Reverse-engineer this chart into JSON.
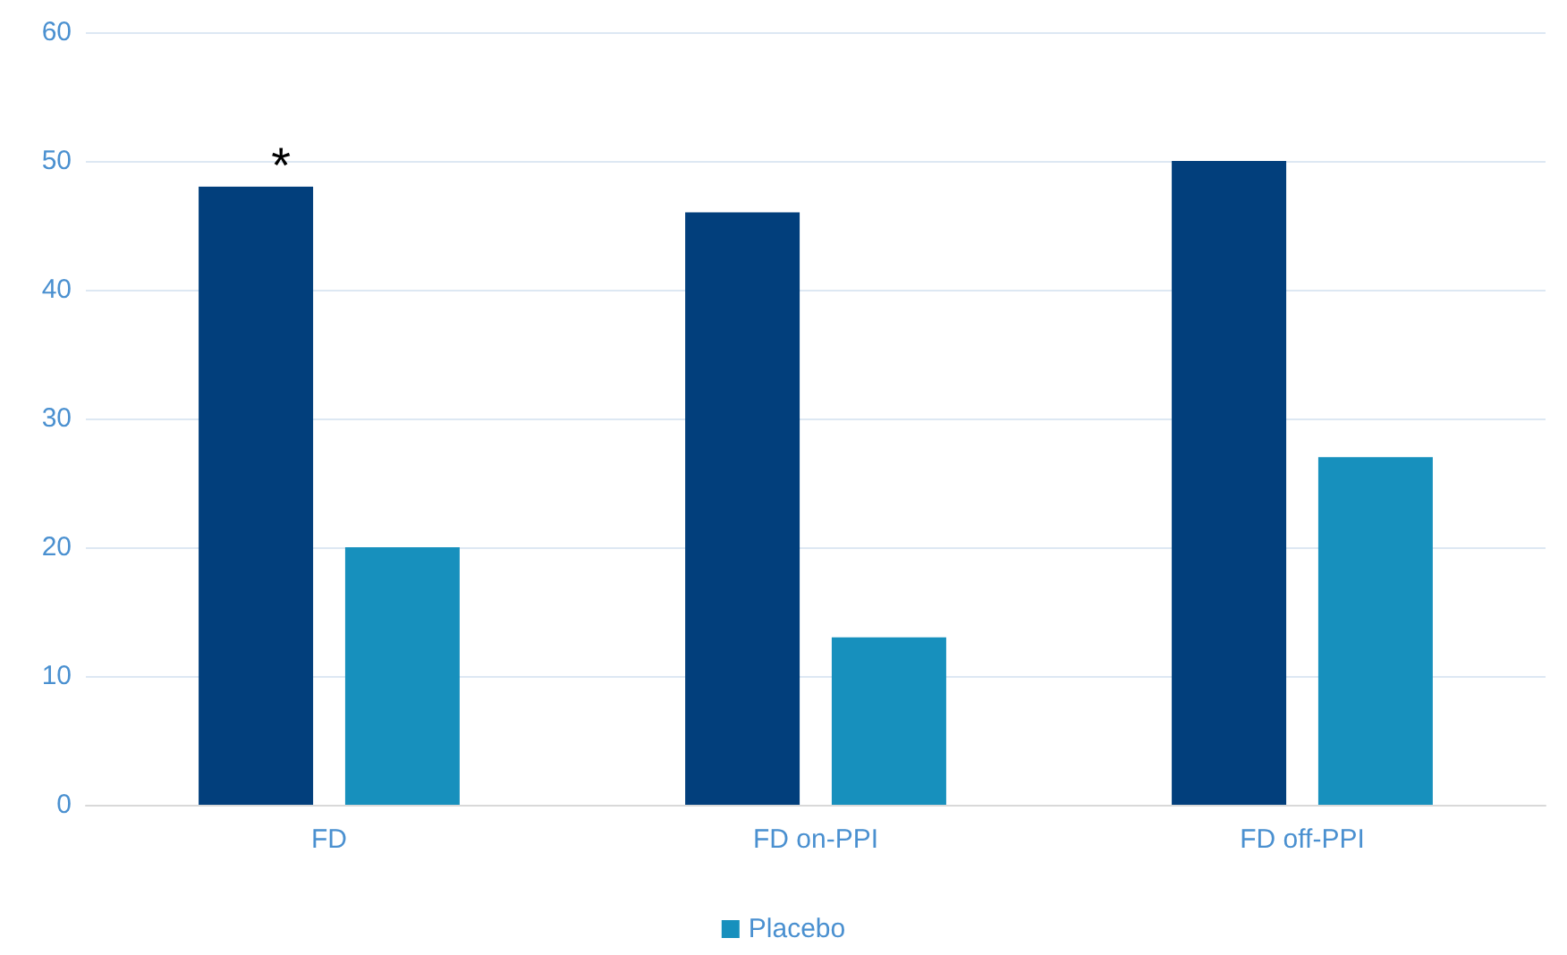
{
  "chart_data": {
    "type": "bar",
    "categories": [
      "FD",
      "FD on-PPI",
      "FD off-PPI"
    ],
    "series": [
      {
        "color": "#023f7c",
        "values": [
          48,
          46,
          50
        ]
      },
      {
        "name": "Placebo",
        "color": "#1790bd",
        "values": [
          20,
          13,
          27
        ]
      }
    ],
    "ylim": [
      0,
      60
    ],
    "yticks": [
      0,
      10,
      20,
      30,
      40,
      50,
      60
    ],
    "grid": "y",
    "legend": "bottom",
    "annotations": [
      "*"
    ]
  }
}
